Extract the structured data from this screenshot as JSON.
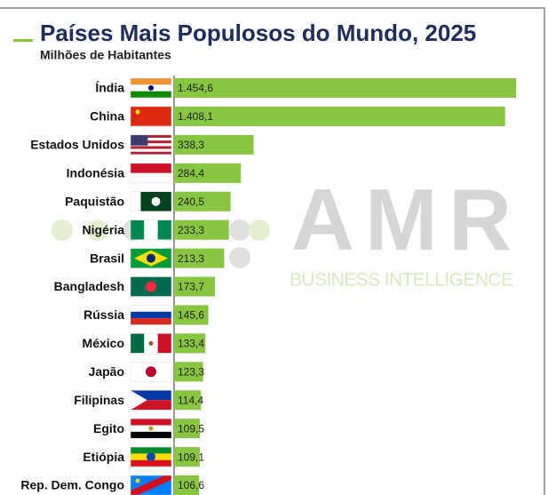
{
  "chart_data": {
    "type": "barh",
    "title": "Países Mais Populosos do Mundo, 2025",
    "subtitle": "Milhões de Habitantes",
    "categories": [
      "Índia",
      "China",
      "Estados Unidos",
      "Indonésia",
      "Paquistão",
      "Nigéria",
      "Brasil",
      "Bangladesh",
      "Rússia",
      "México",
      "Japão",
      "Filipinas",
      "Egito",
      "Etiópia",
      "Rep. Dem. Congo"
    ],
    "values": [
      1454.6,
      1408.1,
      338.3,
      284.4,
      240.5,
      233.3,
      213.3,
      173.7,
      145.6,
      133.4,
      123.3,
      114.4,
      109.5,
      109.1,
      106.6
    ],
    "value_labels": [
      "1.454,6",
      "1.408,1",
      "338,3",
      "284,4",
      "240,5",
      "233,3",
      "213,3",
      "173,7",
      "145,6",
      "133,4",
      "123,3",
      "114,4",
      "109,5",
      "109,1",
      "106,6"
    ],
    "color": "#88c540",
    "watermark": {
      "brand": "AMR",
      "tagline": "BUSINESS INTELLIGENCE"
    }
  }
}
